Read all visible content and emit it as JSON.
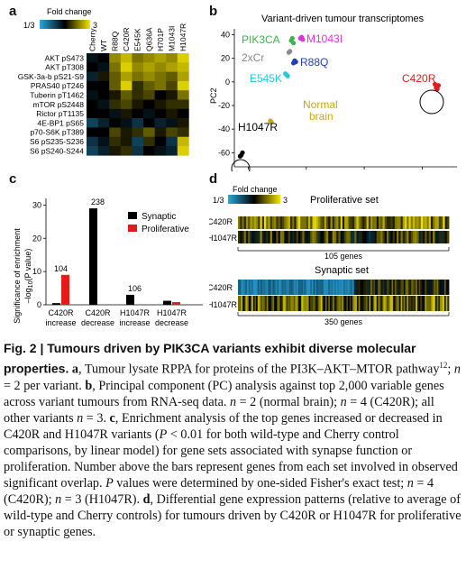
{
  "panel_labels": {
    "a": "a",
    "b": "b",
    "c": "c",
    "d": "d"
  },
  "panel_a": {
    "legend_title": "Fold change",
    "legend_low": "1/3",
    "legend_high": "3",
    "columns": [
      "Cherry",
      "WT",
      "R88Q",
      "C420R",
      "E545K",
      "Q636A",
      "H701P",
      "M1043I",
      "H1047R"
    ],
    "rows": [
      "AKT pS473",
      "AKT pT308",
      "GSK-3a-b pS21-S9",
      "PRAS40 pT246",
      "Tuberin pT1462",
      "mTOR pS2448",
      "Rictor pT1135",
      "4E-BP1 pS65",
      "p70-S6K pT389",
      "S6 pS235-S236",
      "S6 pS240-S244"
    ],
    "heatmap": [
      [
        0.45,
        0.5,
        0.8,
        0.9,
        0.75,
        0.8,
        0.85,
        0.8,
        0.95
      ],
      [
        0.5,
        0.45,
        0.75,
        0.95,
        0.8,
        0.85,
        0.8,
        0.85,
        0.9
      ],
      [
        0.4,
        0.55,
        0.7,
        0.85,
        0.75,
        0.8,
        0.75,
        0.7,
        0.85
      ],
      [
        0.5,
        0.5,
        0.7,
        0.95,
        0.6,
        0.7,
        0.75,
        0.65,
        0.95
      ],
      [
        0.45,
        0.5,
        0.55,
        0.7,
        0.6,
        0.65,
        0.5,
        0.55,
        0.75
      ],
      [
        0.5,
        0.45,
        0.6,
        0.65,
        0.55,
        0.5,
        0.55,
        0.6,
        0.6
      ],
      [
        0.5,
        0.5,
        0.45,
        0.55,
        0.5,
        0.45,
        0.5,
        0.55,
        0.5
      ],
      [
        0.3,
        0.4,
        0.5,
        0.45,
        0.35,
        0.5,
        0.4,
        0.45,
        0.55
      ],
      [
        0.5,
        0.5,
        0.65,
        0.55,
        0.6,
        0.7,
        0.55,
        0.65,
        0.6
      ],
      [
        0.35,
        0.45,
        0.6,
        0.55,
        0.3,
        0.6,
        0.5,
        0.35,
        0.9
      ],
      [
        0.3,
        0.4,
        0.55,
        0.6,
        0.35,
        0.5,
        0.45,
        0.4,
        0.95
      ]
    ]
  },
  "panel_b": {
    "chart_data": {
      "type": "scatter",
      "title": "Variant-driven tumour transcriptomes",
      "xlabel": "PC1",
      "ylabel": "PC2",
      "xlim": [
        -62,
        130
      ],
      "ylim": [
        -72,
        45
      ],
      "xticks": [
        -50,
        0,
        50,
        100
      ],
      "yticks": [
        -60,
        -40,
        -20,
        0,
        20,
        40
      ],
      "series": [
        {
          "name": "PIK3CA",
          "color": "#3cb44b",
          "points": [
            [
              -13,
              35
            ],
            [
              -12,
              37
            ],
            [
              -11,
              33
            ]
          ]
        },
        {
          "name": "M1043I",
          "color": "#e033d6",
          "points": [
            [
              -4,
              38
            ],
            [
              -3,
              36
            ],
            [
              -5,
              37
            ]
          ]
        },
        {
          "name": "2xCr",
          "color": "#8a8a8a",
          "points": [
            [
              -14,
              26
            ],
            [
              -15,
              25
            ]
          ]
        },
        {
          "name": "R88Q",
          "color": "#1f3fb5",
          "points": [
            [
              -10,
              18
            ],
            [
              -11,
              16
            ],
            [
              -9,
              17
            ]
          ]
        },
        {
          "name": "E545K",
          "color": "#28c7df",
          "points": [
            [
              -17,
              6
            ],
            [
              -16,
              5
            ],
            [
              -18,
              7
            ]
          ]
        },
        {
          "name": "Normal brain",
          "color": "#c8a818",
          "points": [
            [
              -30,
              -34
            ],
            [
              -31,
              -33
            ]
          ]
        },
        {
          "name": "C420R",
          "color": "#e41a1c",
          "points": [
            [
              112,
              -5
            ],
            [
              114,
              -3
            ],
            [
              111,
              -2
            ],
            [
              113,
              -6
            ]
          ]
        },
        {
          "name": "H1047R",
          "color": "#000000",
          "points": [
            [
              -56,
              -62
            ],
            [
              -55,
              -60
            ],
            [
              -57,
              -63
            ]
          ]
        }
      ]
    },
    "labels": {
      "pik3ca": "PIK3CA",
      "m1043i": "M1043I",
      "twoxcr": "2xCr",
      "r88q": "R88Q",
      "e545k": "E545K",
      "normal1": "Normal",
      "normal2": "brain",
      "c420r": "C420R",
      "h1047r": "H1047R"
    }
  },
  "panel_c": {
    "chart_data": {
      "type": "bar",
      "categories": [
        [
          "C420R",
          "increase"
        ],
        [
          "C420R",
          "decrease"
        ],
        [
          "H1047R",
          "increase"
        ],
        [
          "H1047R",
          "decrease"
        ]
      ],
      "series": [
        {
          "name": "Synaptic",
          "color": "#000000",
          "values": [
            0.5,
            29,
            3,
            1.2
          ]
        },
        {
          "name": "Proliferative",
          "color": "#e41a1c",
          "values": [
            9,
            0,
            0,
            0.8
          ]
        }
      ],
      "bar_labels": [
        "104",
        "238",
        "106",
        ""
      ],
      "ylabel_line1": "Significance of enrichment",
      "ylabel_line2_pre": "–log",
      "ylabel_line2_sub": "10",
      "ylabel_line2_post": "(P value)",
      "ylim": [
        0,
        32
      ],
      "yticks": [
        0,
        10,
        20,
        30
      ]
    }
  },
  "panel_d": {
    "legend_title": "Fold change",
    "legend_low": "1/3",
    "legend_high": "3",
    "proliferative_title": "Proliferative set",
    "synaptic_title": "Synaptic set",
    "row_c420r": "C420R",
    "row_h1047r": "H1047R",
    "prolif_genes": "105 genes",
    "synaptic_genes": "350 genes"
  },
  "caption": {
    "title": "Fig. 2 | Tumours driven by PIK3CA variants exhibit diverse molecular properties.",
    "a_label": "a",
    "a_text": ", Tumour lysate RPPA for proteins of the PI3K–AKT–MTOR pathway",
    "a_ref": "12",
    "a_text2": "; ",
    "n_sym": "n",
    "a_text3": " = 2 per variant. ",
    "b_label": "b",
    "b_text": ", Principal component (PC) analysis against top 2,000 variable genes across variant tumours from RNA-seq data. ",
    "b_text2": " = 2 (normal brain); ",
    "b_text3": " = 4 (C420R); all other variants ",
    "b_text4": " = 3. ",
    "c_label": "c",
    "c_text": ", Enrichment analysis of the top genes increased or decreased in C420R and H1047R variants (",
    "p_sym": "P",
    "c_text2": " < 0.01 for both wild-type and Cherry control comparisons, by linear model) for gene sets associated with synapse function or proliferation. Number above the bars represent genes from each set involved in observed significant overlap. ",
    "c_text3": " values were determined by one-sided Fisher's exact test; ",
    "c_text4": " = 4 (C420R); ",
    "c_text5": " = 3 (H1047R). ",
    "d_label": "d",
    "d_text": ", Differential gene expression patterns (relative to average of wild-type and Cherry controls) for tumours driven by C420R or H1047R for proliferative or synaptic genes."
  }
}
